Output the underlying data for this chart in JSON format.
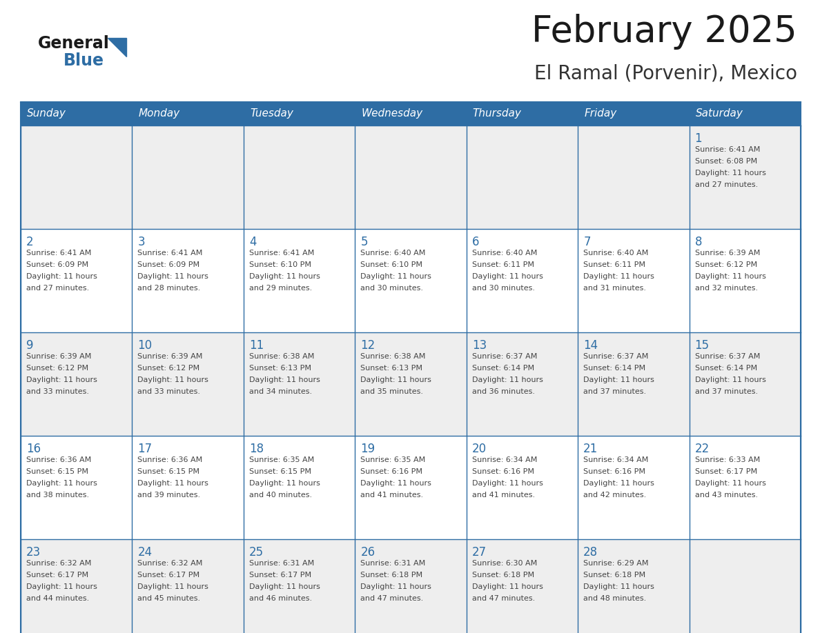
{
  "title": "February 2025",
  "subtitle": "El Ramal (Porvenir), Mexico",
  "header_color": "#2E6DA4",
  "header_text_color": "#FFFFFF",
  "days_of_week": [
    "Sunday",
    "Monday",
    "Tuesday",
    "Wednesday",
    "Thursday",
    "Friday",
    "Saturday"
  ],
  "border_color": "#2E6DA4",
  "day_number_color": "#2E6DA4",
  "text_color": "#444444",
  "row_colors": [
    "#EEEEEE",
    "#FFFFFF",
    "#EEEEEE",
    "#FFFFFF",
    "#EEEEEE"
  ],
  "calendar_data": [
    [
      {
        "day": null,
        "info": ""
      },
      {
        "day": null,
        "info": ""
      },
      {
        "day": null,
        "info": ""
      },
      {
        "day": null,
        "info": ""
      },
      {
        "day": null,
        "info": ""
      },
      {
        "day": null,
        "info": ""
      },
      {
        "day": 1,
        "info": "Sunrise: 6:41 AM\nSunset: 6:08 PM\nDaylight: 11 hours\nand 27 minutes."
      }
    ],
    [
      {
        "day": 2,
        "info": "Sunrise: 6:41 AM\nSunset: 6:09 PM\nDaylight: 11 hours\nand 27 minutes."
      },
      {
        "day": 3,
        "info": "Sunrise: 6:41 AM\nSunset: 6:09 PM\nDaylight: 11 hours\nand 28 minutes."
      },
      {
        "day": 4,
        "info": "Sunrise: 6:41 AM\nSunset: 6:10 PM\nDaylight: 11 hours\nand 29 minutes."
      },
      {
        "day": 5,
        "info": "Sunrise: 6:40 AM\nSunset: 6:10 PM\nDaylight: 11 hours\nand 30 minutes."
      },
      {
        "day": 6,
        "info": "Sunrise: 6:40 AM\nSunset: 6:11 PM\nDaylight: 11 hours\nand 30 minutes."
      },
      {
        "day": 7,
        "info": "Sunrise: 6:40 AM\nSunset: 6:11 PM\nDaylight: 11 hours\nand 31 minutes."
      },
      {
        "day": 8,
        "info": "Sunrise: 6:39 AM\nSunset: 6:12 PM\nDaylight: 11 hours\nand 32 minutes."
      }
    ],
    [
      {
        "day": 9,
        "info": "Sunrise: 6:39 AM\nSunset: 6:12 PM\nDaylight: 11 hours\nand 33 minutes."
      },
      {
        "day": 10,
        "info": "Sunrise: 6:39 AM\nSunset: 6:12 PM\nDaylight: 11 hours\nand 33 minutes."
      },
      {
        "day": 11,
        "info": "Sunrise: 6:38 AM\nSunset: 6:13 PM\nDaylight: 11 hours\nand 34 minutes."
      },
      {
        "day": 12,
        "info": "Sunrise: 6:38 AM\nSunset: 6:13 PM\nDaylight: 11 hours\nand 35 minutes."
      },
      {
        "day": 13,
        "info": "Sunrise: 6:37 AM\nSunset: 6:14 PM\nDaylight: 11 hours\nand 36 minutes."
      },
      {
        "day": 14,
        "info": "Sunrise: 6:37 AM\nSunset: 6:14 PM\nDaylight: 11 hours\nand 37 minutes."
      },
      {
        "day": 15,
        "info": "Sunrise: 6:37 AM\nSunset: 6:14 PM\nDaylight: 11 hours\nand 37 minutes."
      }
    ],
    [
      {
        "day": 16,
        "info": "Sunrise: 6:36 AM\nSunset: 6:15 PM\nDaylight: 11 hours\nand 38 minutes."
      },
      {
        "day": 17,
        "info": "Sunrise: 6:36 AM\nSunset: 6:15 PM\nDaylight: 11 hours\nand 39 minutes."
      },
      {
        "day": 18,
        "info": "Sunrise: 6:35 AM\nSunset: 6:15 PM\nDaylight: 11 hours\nand 40 minutes."
      },
      {
        "day": 19,
        "info": "Sunrise: 6:35 AM\nSunset: 6:16 PM\nDaylight: 11 hours\nand 41 minutes."
      },
      {
        "day": 20,
        "info": "Sunrise: 6:34 AM\nSunset: 6:16 PM\nDaylight: 11 hours\nand 41 minutes."
      },
      {
        "day": 21,
        "info": "Sunrise: 6:34 AM\nSunset: 6:16 PM\nDaylight: 11 hours\nand 42 minutes."
      },
      {
        "day": 22,
        "info": "Sunrise: 6:33 AM\nSunset: 6:17 PM\nDaylight: 11 hours\nand 43 minutes."
      }
    ],
    [
      {
        "day": 23,
        "info": "Sunrise: 6:32 AM\nSunset: 6:17 PM\nDaylight: 11 hours\nand 44 minutes."
      },
      {
        "day": 24,
        "info": "Sunrise: 6:32 AM\nSunset: 6:17 PM\nDaylight: 11 hours\nand 45 minutes."
      },
      {
        "day": 25,
        "info": "Sunrise: 6:31 AM\nSunset: 6:17 PM\nDaylight: 11 hours\nand 46 minutes."
      },
      {
        "day": 26,
        "info": "Sunrise: 6:31 AM\nSunset: 6:18 PM\nDaylight: 11 hours\nand 47 minutes."
      },
      {
        "day": 27,
        "info": "Sunrise: 6:30 AM\nSunset: 6:18 PM\nDaylight: 11 hours\nand 47 minutes."
      },
      {
        "day": 28,
        "info": "Sunrise: 6:29 AM\nSunset: 6:18 PM\nDaylight: 11 hours\nand 48 minutes."
      },
      {
        "day": null,
        "info": ""
      }
    ]
  ]
}
